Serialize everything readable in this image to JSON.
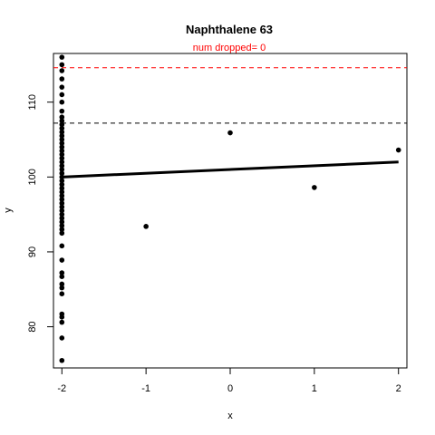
{
  "chart_data": {
    "type": "scatter",
    "title": "Naphthalene 63",
    "subtitle": "num dropped= 0",
    "xlabel": "x",
    "ylabel": "y",
    "xlim": [
      -2.1,
      2.1
    ],
    "ylim": [
      74.5,
      116.5
    ],
    "xticks": [
      -2,
      -1,
      0,
      1,
      2
    ],
    "yticks": [
      80,
      90,
      100,
      110
    ],
    "grid": false,
    "points": [
      {
        "x": -2,
        "y": 116.0
      },
      {
        "x": -2,
        "y": 115.0
      },
      {
        "x": -2,
        "y": 114.2
      },
      {
        "x": -2,
        "y": 113.1
      },
      {
        "x": -2,
        "y": 112.0
      },
      {
        "x": -2,
        "y": 111.0
      },
      {
        "x": -2,
        "y": 110.0
      },
      {
        "x": -2,
        "y": 108.8
      },
      {
        "x": -2,
        "y": 108.0
      },
      {
        "x": -2,
        "y": 107.5
      },
      {
        "x": -2,
        "y": 107.0
      },
      {
        "x": -2,
        "y": 106.5
      },
      {
        "x": -2,
        "y": 106.0
      },
      {
        "x": -2,
        "y": 105.5
      },
      {
        "x": -2,
        "y": 105.0
      },
      {
        "x": -2,
        "y": 104.5
      },
      {
        "x": -2,
        "y": 104.0
      },
      {
        "x": -2,
        "y": 103.5
      },
      {
        "x": -2,
        "y": 103.0
      },
      {
        "x": -2,
        "y": 102.5
      },
      {
        "x": -2,
        "y": 102.0
      },
      {
        "x": -2,
        "y": 101.5
      },
      {
        "x": -2,
        "y": 101.0
      },
      {
        "x": -2,
        "y": 100.5
      },
      {
        "x": -2,
        "y": 100.0
      },
      {
        "x": -2,
        "y": 99.5
      },
      {
        "x": -2,
        "y": 99.0
      },
      {
        "x": -2,
        "y": 98.5
      },
      {
        "x": -2,
        "y": 98.0
      },
      {
        "x": -2,
        "y": 97.5
      },
      {
        "x": -2,
        "y": 97.0
      },
      {
        "x": -2,
        "y": 96.5
      },
      {
        "x": -2,
        "y": 96.0
      },
      {
        "x": -2,
        "y": 95.5
      },
      {
        "x": -2,
        "y": 95.0
      },
      {
        "x": -2,
        "y": 94.5
      },
      {
        "x": -2,
        "y": 94.0
      },
      {
        "x": -2,
        "y": 93.5
      },
      {
        "x": -2,
        "y": 93.0
      },
      {
        "x": -2,
        "y": 92.5
      },
      {
        "x": -2,
        "y": 90.8
      },
      {
        "x": -2,
        "y": 88.9
      },
      {
        "x": -2,
        "y": 87.2
      },
      {
        "x": -2,
        "y": 86.7
      },
      {
        "x": -2,
        "y": 85.7
      },
      {
        "x": -2,
        "y": 85.2
      },
      {
        "x": -2,
        "y": 84.4
      },
      {
        "x": -2,
        "y": 81.7
      },
      {
        "x": -2,
        "y": 81.3
      },
      {
        "x": -2,
        "y": 80.6
      },
      {
        "x": -2,
        "y": 78.5
      },
      {
        "x": -2,
        "y": 75.5
      },
      {
        "x": -1,
        "y": 93.4
      },
      {
        "x": 0,
        "y": 105.9
      },
      {
        "x": 1,
        "y": 98.6
      },
      {
        "x": 2,
        "y": 103.6
      }
    ],
    "fit_line": {
      "x": [
        -2,
        2
      ],
      "y": [
        100.0,
        102.0
      ],
      "color": "#000000"
    },
    "reference_lines": [
      {
        "y": 114.6,
        "color": "#ff0000",
        "style": "dashed"
      },
      {
        "y": 107.2,
        "color": "#000000",
        "style": "dashed"
      }
    ]
  }
}
